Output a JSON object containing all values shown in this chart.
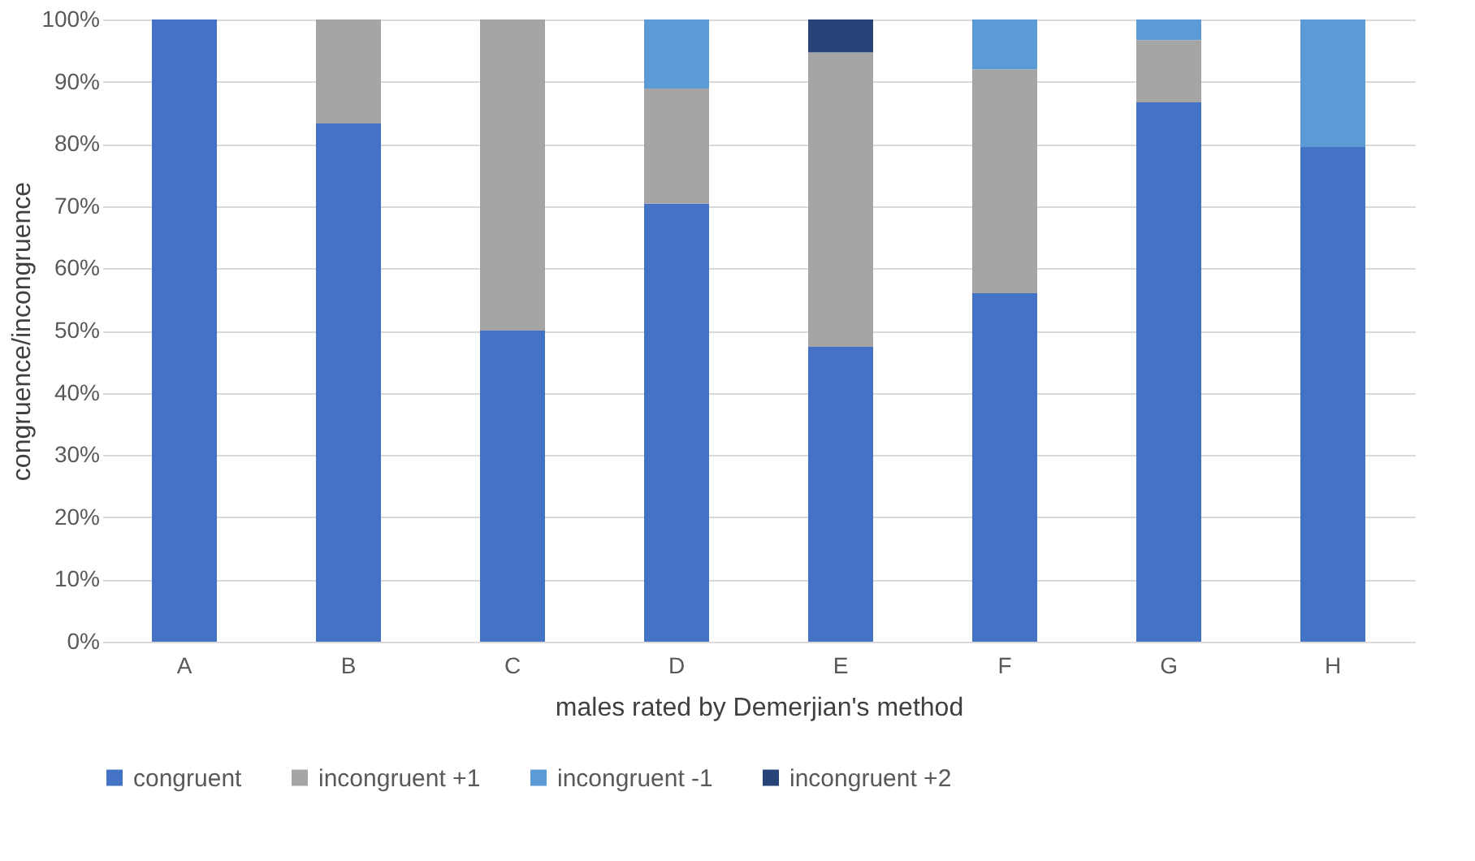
{
  "chart_data": {
    "type": "bar",
    "stacked": true,
    "xlabel": "males rated by Demerjian's method",
    "ylabel": "congruence/incongruence",
    "categories": [
      "A",
      "B",
      "C",
      "D",
      "E",
      "F",
      "G",
      "H"
    ],
    "series": [
      {
        "name": "congruent",
        "color": "#4472c4",
        "values": [
          100,
          83.3,
          50,
          70.4,
          47.4,
          56,
          86.7,
          79.5
        ]
      },
      {
        "name": "incongruent +1",
        "color": "#a5a5a5",
        "values": [
          null,
          16.7,
          50,
          18.5,
          47.3,
          36,
          10,
          null
        ]
      },
      {
        "name": "incongruent -1",
        "color": "#5b9bd5",
        "values": [
          null,
          null,
          null,
          11.1,
          null,
          8,
          3.3,
          20.5
        ]
      },
      {
        "name": "incongruent +2",
        "color": "#264478",
        "values": [
          null,
          null,
          null,
          null,
          5.3,
          null,
          null,
          null
        ]
      }
    ],
    "ylim": [
      0,
      100
    ],
    "yticks": [
      {
        "value": 0,
        "label": "0%"
      },
      {
        "value": 10,
        "label": "10%"
      },
      {
        "value": 20,
        "label": "20%"
      },
      {
        "value": 30,
        "label": "30%"
      },
      {
        "value": 40,
        "label": "40%"
      },
      {
        "value": 50,
        "label": "50%"
      },
      {
        "value": 60,
        "label": "60%"
      },
      {
        "value": 70,
        "label": "70%"
      },
      {
        "value": 80,
        "label": "80%"
      },
      {
        "value": 90,
        "label": "90%"
      },
      {
        "value": 100,
        "label": "100%"
      }
    ],
    "grid": "y",
    "legend": "bottom"
  }
}
